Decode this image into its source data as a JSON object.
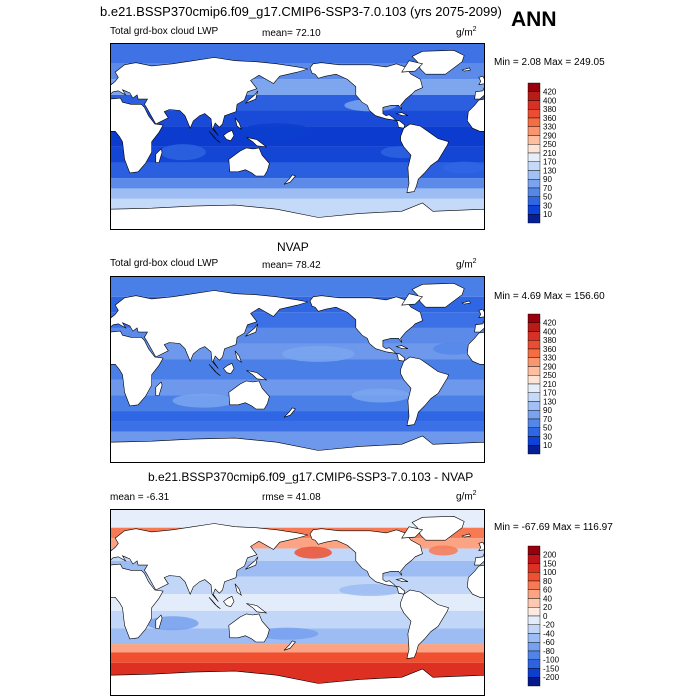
{
  "header": {
    "title": "b.e21.BSSP370cmip6.f09_g17.CMIP6-SSP3-7.0.103 (yrs 2075-2099)",
    "season": "ANN"
  },
  "panels": [
    {
      "left_label": "Total grd-box cloud LWP",
      "center_label": "mean=  72.10",
      "units": "g/m",
      "units_sup": "2",
      "minmax": "Min =   2.08 Max = 249.05",
      "colorbar": {
        "levels": [
          "420",
          "400",
          "380",
          "360",
          "330",
          "290",
          "250",
          "210",
          "170",
          "130",
          "90",
          "70",
          "50",
          "30",
          "10"
        ],
        "colors": [
          "#99000d",
          "#b71c16",
          "#d73026",
          "#ea4d32",
          "#f46d43",
          "#f99670",
          "#fdbf9f",
          "#fde4d4",
          "#e6eefb",
          "#c5d9f9",
          "#a0c0f6",
          "#7aa4f0",
          "#5487ea",
          "#2f66e4",
          "#0c42d8",
          "#061f96"
        ]
      }
    },
    {
      "section_title": "NVAP",
      "left_label": "Total grd-box cloud LWP",
      "center_label": "mean=  78.42",
      "units": "g/m",
      "units_sup": "2",
      "minmax": "Min =   4.69 Max = 156.60",
      "colorbar": {
        "levels": [
          "420",
          "400",
          "380",
          "360",
          "330",
          "290",
          "250",
          "210",
          "170",
          "130",
          "90",
          "70",
          "50",
          "30",
          "10"
        ],
        "colors": [
          "#99000d",
          "#b71c16",
          "#d73026",
          "#ea4d32",
          "#f46d43",
          "#f99670",
          "#fdbf9f",
          "#fde4d4",
          "#e6eefb",
          "#c5d9f9",
          "#a0c0f6",
          "#7aa4f0",
          "#5487ea",
          "#2f66e4",
          "#0c42d8",
          "#061f96"
        ]
      }
    },
    {
      "section_title": "b.e21.BSSP370cmip6.f09_g17.CMIP6-SSP3-7.0.103 - NVAP",
      "left_label": "mean =  -6.31",
      "center_label": "rmse =  41.08",
      "units": "g/m",
      "units_sup": "2",
      "minmax": "Min = -67.69 Max = 116.97",
      "colorbar": {
        "levels": [
          "200",
          "150",
          "100",
          "80",
          "60",
          "40",
          "20",
          "0",
          "-20",
          "-40",
          "-60",
          "-80",
          "-100",
          "-150",
          "-200"
        ],
        "colors": [
          "#99000d",
          "#c0141b",
          "#dd2f22",
          "#f0502f",
          "#f77a55",
          "#fba383",
          "#fdc9b2",
          "#fde9df",
          "#e3ecfb",
          "#c2d6f8",
          "#9dbcf4",
          "#77a0ee",
          "#5184e8",
          "#2d63e1",
          "#0c3ecf",
          "#061a8c"
        ]
      }
    }
  ]
}
